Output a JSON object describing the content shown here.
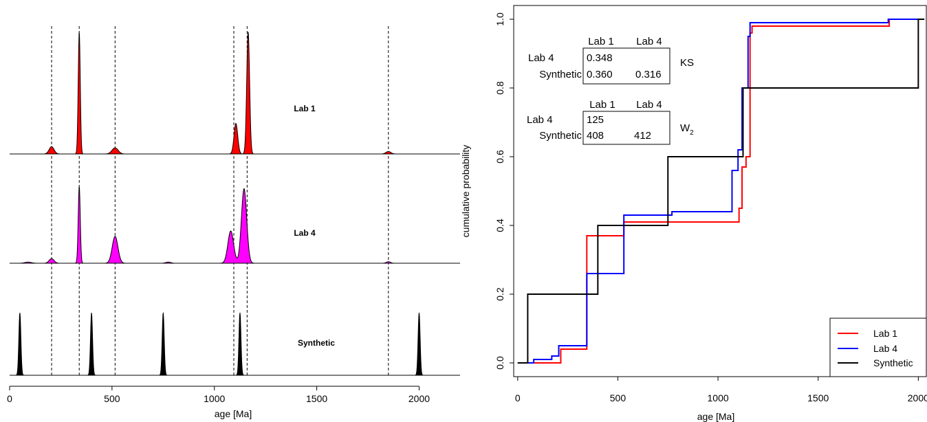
{
  "chart_data": [
    {
      "type": "area",
      "title": "",
      "xlabel": "age [Ma]",
      "ylabel": "",
      "xlim": [
        0,
        2200
      ],
      "x_ticks": [
        0,
        500,
        1000,
        1500,
        2000
      ],
      "x_tick_labels": [
        "0",
        "500",
        "1000",
        "1500",
        "2000"
      ],
      "reference_lines": [
        205,
        340,
        515,
        1095,
        1160,
        1850
      ],
      "series": [
        {
          "name": "Lab 1",
          "color": "#ff0000",
          "peaks": [
            {
              "age": 205,
              "height": 0.06,
              "sd": 12
            },
            {
              "age": 340,
              "height": 1.0,
              "sd": 5
            },
            {
              "age": 515,
              "height": 0.05,
              "sd": 15
            },
            {
              "age": 1105,
              "height": 0.25,
              "sd": 9
            },
            {
              "age": 1165,
              "height": 1.0,
              "sd": 7
            },
            {
              "age": 1850,
              "height": 0.02,
              "sd": 12
            }
          ]
        },
        {
          "name": "Lab 4",
          "color": "#ff00ff",
          "peaks": [
            {
              "age": 90,
              "height": 0.015,
              "sd": 15
            },
            {
              "age": 205,
              "height": 0.06,
              "sd": 12
            },
            {
              "age": 340,
              "height": 1.0,
              "sd": 5
            },
            {
              "age": 515,
              "height": 0.35,
              "sd": 14
            },
            {
              "age": 775,
              "height": 0.015,
              "sd": 12
            },
            {
              "age": 1080,
              "height": 0.42,
              "sd": 14
            },
            {
              "age": 1145,
              "height": 0.97,
              "sd": 13
            },
            {
              "age": 1850,
              "height": 0.02,
              "sd": 10
            }
          ]
        },
        {
          "name": "Synthetic",
          "color": "#000000",
          "peaks": [
            {
              "age": 50,
              "height": 0.93,
              "sd": 5
            },
            {
              "age": 400,
              "height": 0.93,
              "sd": 5
            },
            {
              "age": 750,
              "height": 0.93,
              "sd": 5
            },
            {
              "age": 1125,
              "height": 0.93,
              "sd": 5
            },
            {
              "age": 2000,
              "height": 0.93,
              "sd": 5
            }
          ]
        }
      ]
    },
    {
      "type": "line",
      "title": "",
      "xlabel": "age [Ma]",
      "ylabel": "cumulative probability",
      "xlim": [
        -20,
        2040
      ],
      "ylim": [
        -0.04,
        1.04
      ],
      "x_ticks": [
        0,
        500,
        1000,
        1500,
        2000
      ],
      "x_tick_labels": [
        "0",
        "500",
        "1000",
        "1500",
        "2000"
      ],
      "y_ticks": [
        0,
        0.2,
        0.4,
        0.6,
        0.8,
        1.0
      ],
      "y_tick_labels": [
        "0.0",
        "0.2",
        "0.4",
        "0.6",
        "0.8",
        "1.0"
      ],
      "legend_position": "bottom-right",
      "series": [
        {
          "name": "Lab 1",
          "color": "#ff0000",
          "x": [
            0,
            200,
            215,
            330,
            345,
            520,
            530,
            1095,
            1105,
            1120,
            1140,
            1160,
            1170,
            1855,
            2030
          ],
          "y": [
            0,
            0,
            0.04,
            0.04,
            0.37,
            0.37,
            0.41,
            0.41,
            0.45,
            0.57,
            0.6,
            0.96,
            0.98,
            1.0,
            1.0
          ]
        },
        {
          "name": "Lab 4",
          "color": "#0000ff",
          "x": [
            0,
            80,
            170,
            205,
            330,
            345,
            490,
            530,
            770,
            1050,
            1070,
            1100,
            1120,
            1150,
            1160,
            1850,
            2030
          ],
          "y": [
            0,
            0.01,
            0.02,
            0.05,
            0.05,
            0.26,
            0.26,
            0.43,
            0.44,
            0.44,
            0.56,
            0.62,
            0.8,
            0.95,
            0.99,
            1.0,
            1.0
          ]
        },
        {
          "name": "Synthetic",
          "color": "#000000",
          "x": [
            0,
            50,
            400,
            750,
            1125,
            2000,
            2030
          ],
          "y": [
            0,
            0.2,
            0.4,
            0.6,
            0.8,
            1.0,
            1.0
          ]
        }
      ]
    }
  ],
  "tables": {
    "ks": {
      "label": "KS",
      "col_headers": [
        "Lab 1",
        "Lab 4"
      ],
      "row_headers": [
        "Lab 4",
        "Synthetic"
      ],
      "cells": [
        [
          "0.348",
          ""
        ],
        [
          "0.360",
          "0.316"
        ]
      ]
    },
    "w2": {
      "label": "W",
      "label_sub": "2",
      "col_headers": [
        "Lab 1",
        "Lab 4"
      ],
      "row_headers": [
        "Lab 4",
        "Synthetic"
      ],
      "cells": [
        [
          "125",
          ""
        ],
        [
          "408",
          "412"
        ]
      ]
    }
  }
}
